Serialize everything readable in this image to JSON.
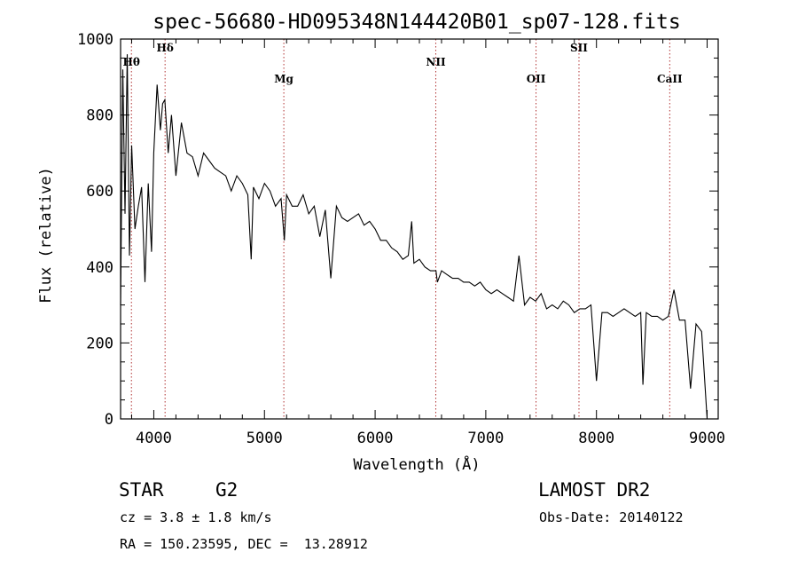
{
  "chart_data": {
    "type": "line",
    "title": "spec-56680-HD095348N144420B01_sp07-128.fits",
    "xlabel": "Wavelength (Å)",
    "ylabel": "Flux (relative)",
    "xlim": [
      3700,
      9100
    ],
    "ylim": [
      0,
      1000
    ],
    "xticks": [
      4000,
      5000,
      6000,
      7000,
      8000,
      9000
    ],
    "yticks": [
      0,
      200,
      400,
      600,
      800,
      1000
    ],
    "grid": false,
    "series": [
      {
        "x": [
          3700,
          3720,
          3740,
          3760,
          3780,
          3800,
          3830,
          3860,
          3890,
          3920,
          3950,
          3980,
          4000,
          4030,
          4060,
          4080,
          4100,
          4130,
          4160,
          4200,
          4250,
          4300,
          4350,
          4400,
          4450,
          4500,
          4550,
          4600,
          4650,
          4700,
          4750,
          4800,
          4850,
          4880,
          4900,
          4950,
          5000,
          5050,
          5100,
          5150,
          5180,
          5200,
          5250,
          5300,
          5350,
          5400,
          5450,
          5500,
          5550,
          5600,
          5650,
          5700,
          5750,
          5800,
          5850,
          5900,
          5950,
          6000,
          6050,
          6100,
          6150,
          6200,
          6250,
          6300,
          6330,
          6350,
          6400,
          6450,
          6500,
          6550,
          6563,
          6600,
          6650,
          6700,
          6750,
          6800,
          6850,
          6900,
          6950,
          7000,
          7050,
          7100,
          7150,
          7200,
          7250,
          7300,
          7350,
          7400,
          7450,
          7500,
          7550,
          7600,
          7650,
          7700,
          7750,
          7800,
          7850,
          7900,
          7950,
          8000,
          8050,
          8100,
          8150,
          8200,
          8250,
          8300,
          8350,
          8400,
          8420,
          8450,
          8500,
          8550,
          8600,
          8650,
          8700,
          8750,
          8800,
          8850,
          8900,
          8950,
          9000
        ],
        "y": [
          300,
          920,
          540,
          960,
          430,
          720,
          500,
          560,
          610,
          360,
          620,
          440,
          700,
          880,
          760,
          830,
          840,
          700,
          800,
          640,
          780,
          700,
          690,
          640,
          700,
          680,
          660,
          650,
          640,
          600,
          640,
          620,
          590,
          420,
          610,
          580,
          620,
          600,
          560,
          580,
          470,
          590,
          560,
          560,
          590,
          540,
          560,
          480,
          550,
          370,
          560,
          530,
          520,
          530,
          540,
          510,
          520,
          500,
          470,
          470,
          450,
          440,
          420,
          430,
          520,
          410,
          420,
          400,
          390,
          390,
          360,
          390,
          380,
          370,
          370,
          360,
          360,
          350,
          360,
          340,
          330,
          340,
          330,
          320,
          310,
          430,
          300,
          320,
          310,
          330,
          290,
          300,
          290,
          310,
          300,
          280,
          290,
          290,
          300,
          100,
          280,
          280,
          270,
          280,
          290,
          280,
          270,
          280,
          90,
          280,
          270,
          270,
          260,
          270,
          340,
          260,
          260,
          80,
          250,
          230,
          0
        ]
      }
    ],
    "line_annotations": [
      {
        "label": "Hθ",
        "x": 3798
      },
      {
        "label": "Hδ",
        "x": 4102
      },
      {
        "label": "Mg",
        "x": 5175
      },
      {
        "label": "NII",
        "x": 6548
      },
      {
        "label": "OII",
        "x": 7454
      },
      {
        "label": "SII",
        "x": 7842
      },
      {
        "label": "CaII",
        "x": 8662
      }
    ]
  },
  "info": {
    "object_type": "STAR",
    "subclass": "G2",
    "survey": "LAMOST DR2",
    "cz": "cz = 3.8 ± 1.8 km/s",
    "obs_date": "Obs-Date: 20140122",
    "coords": "RA = 150.23595, DEC =  13.28912"
  },
  "colors": {
    "spectrum": "#000000",
    "line_marker": "#b03030"
  }
}
